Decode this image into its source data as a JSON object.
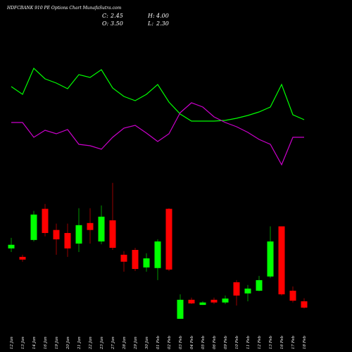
{
  "chart_data": {
    "type": "candlestick",
    "title": "HDFCBANK 910  PE Options  Chart MunafaSutra.com",
    "header": [
      {
        "label": "C:",
        "value": "2.45"
      },
      {
        "label": "H:",
        "value": "4.00"
      },
      {
        "label": "O:",
        "value": "3.50"
      },
      {
        "label": "L:",
        "value": "2.30"
      }
    ],
    "categories": [
      "12 Jan",
      "13 Jan",
      "14 Jan",
      "16 Jan",
      "19 Jan",
      "20 Jan",
      "21 Jan",
      "22 Jan",
      "23 Jan",
      "27 Jan",
      "28 Jan",
      "29 Jan",
      "30 Jan",
      "01 Feb",
      "02 Feb",
      "03 Feb",
      "04 Feb",
      "05 Feb",
      "06 Feb",
      "09 Feb",
      "10 Feb",
      "11 Feb",
      "12 Feb",
      "13 Feb",
      "16 Feb",
      "17 Feb",
      "18 Feb"
    ],
    "open": [
      12.25,
      10.85,
      13.65,
      18.8,
      15.3,
      14.8,
      13.05,
      16.45,
      13.4,
      16.9,
      11.2,
      12.0,
      9.1,
      9.0,
      18.8,
      0.6,
      3.75,
      2.9,
      3.75,
      3.3,
      6.65,
      4.8,
      5.25,
      7.6,
      15.9,
      5.25,
      3.5
    ],
    "high": [
      14.0,
      11.2,
      18.45,
      19.6,
      16.35,
      16.35,
      18.9,
      18.9,
      19.35,
      23.1,
      11.8,
      12.35,
      11.45,
      13.75,
      18.9,
      4.65,
      4.1,
      3.5,
      4.1,
      4.45,
      7.0,
      6.2,
      7.7,
      15.9,
      15.9,
      5.95,
      4.0
    ],
    "low": [
      11.65,
      10.05,
      13.4,
      14.25,
      11.2,
      10.85,
      11.65,
      13.05,
      12.95,
      12.0,
      8.4,
      8.5,
      8.4,
      7.0,
      8.5,
      0.6,
      3.05,
      2.9,
      3.05,
      3.05,
      2.8,
      3.5,
      5.15,
      7.35,
      4.45,
      3.3,
      2.3
    ],
    "close": [
      12.85,
      10.4,
      17.85,
      14.8,
      13.75,
      12.25,
      16.1,
      15.3,
      17.5,
      12.35,
      10.05,
      8.85,
      10.6,
      13.4,
      8.75,
      3.75,
      3.15,
      3.3,
      3.3,
      3.95,
      4.45,
      5.6,
      7.0,
      13.4,
      4.65,
      3.6,
      2.45
    ],
    "ylim": [
      0,
      24
    ],
    "up_color": "#00ff00",
    "down_color": "#ff0000",
    "lines": [
      {
        "color": "#00ff00",
        "values": [
          127,
          116,
          153,
          138,
          132,
          124,
          144,
          140,
          151,
          125,
          113,
          107,
          116,
          130,
          105,
          88,
          78,
          78,
          78,
          79,
          82,
          86,
          91,
          98,
          130,
          87,
          80
        ]
      },
      {
        "color": "#cc00cc",
        "values": [
          76,
          76,
          55,
          65,
          60,
          66,
          45,
          43,
          38,
          55,
          68,
          72,
          61,
          49,
          60,
          90,
          104,
          98,
          84,
          76,
          70,
          62,
          52,
          45,
          16,
          55,
          55
        ]
      }
    ],
    "lines_ylim": [
      0,
      170
    ]
  }
}
